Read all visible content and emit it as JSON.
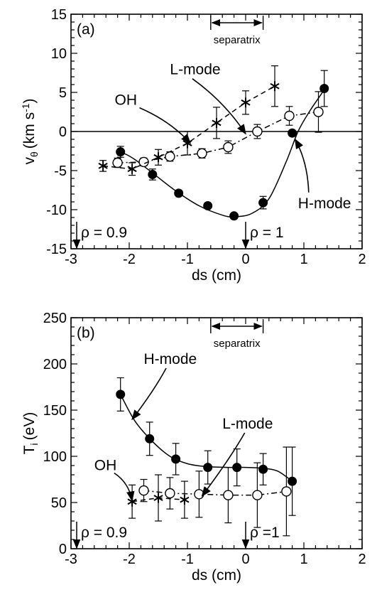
{
  "chart_data": [
    {
      "type": "scatter",
      "panel_label": "(a)",
      "xlabel": "ds (cm)",
      "ylabel_main": "v",
      "ylabel_sub": "θ",
      "ylabel_unit": "(km s",
      "ylabel_exp": "-1",
      "ylabel_close": ")",
      "xlim": [
        -3,
        2
      ],
      "ylim": [
        -15,
        15
      ],
      "xticks": [
        -3,
        -2,
        -1,
        0,
        1,
        2
      ],
      "yticks": [
        -15,
        -10,
        -5,
        0,
        5,
        10,
        15
      ],
      "xtick_labels": [
        "-3",
        "-2",
        "-1",
        "0",
        "1",
        "2"
      ],
      "ytick_labels": [
        "-15",
        "-10",
        "-5",
        "0",
        "5",
        "10",
        "15"
      ],
      "zero_line": true,
      "separatrix": {
        "label": "separatrix",
        "x_range": [
          -0.6,
          0.3
        ]
      },
      "markers": [
        {
          "text": "ρ = 0.9",
          "x": -3
        },
        {
          "text": "ρ = 1",
          "x": 0
        }
      ],
      "series": [
        {
          "name": "H-mode",
          "marker": "filled-circle",
          "line": "solid",
          "points": [
            {
              "x": -2.15,
              "y": -2.6,
              "err": 0.7
            },
            {
              "x": -1.6,
              "y": -5.5,
              "err": 0.7
            },
            {
              "x": -1.15,
              "y": -7.9,
              "err": 0
            },
            {
              "x": -0.65,
              "y": -9.5,
              "err": 0
            },
            {
              "x": -0.2,
              "y": -10.8,
              "err": 0
            },
            {
              "x": 0.3,
              "y": -9.1,
              "err": 0.8
            },
            {
              "x": 0.8,
              "y": -0.2,
              "err": 0
            },
            {
              "x": 1.35,
              "y": 5.5,
              "err": 2.3
            }
          ],
          "curve": [
            [
              -2.2,
              -3.1
            ],
            [
              -2.1,
              -2.8
            ],
            [
              -1.9,
              -3.6
            ],
            [
              -1.6,
              -5.3
            ],
            [
              -1.2,
              -7.6
            ],
            [
              -0.8,
              -9.5
            ],
            [
              -0.4,
              -10.7
            ],
            [
              -0.2,
              -10.9
            ],
            [
              0.1,
              -10.5
            ],
            [
              0.4,
              -8.6
            ],
            [
              0.7,
              -3.8
            ],
            [
              0.9,
              0
            ],
            [
              1.1,
              2.6
            ],
            [
              1.3,
              4.8
            ],
            [
              1.35,
              5.5
            ]
          ]
        },
        {
          "name": "L-mode",
          "marker": "open-circle",
          "line": "dash-dot",
          "points": [
            {
              "x": -2.2,
              "y": -4.0,
              "err": 0.6
            },
            {
              "x": -1.75,
              "y": -3.9,
              "err": 0.5
            },
            {
              "x": -1.3,
              "y": -3.2,
              "err": 0.6
            },
            {
              "x": -0.75,
              "y": -2.8,
              "err": 0.6
            },
            {
              "x": -0.3,
              "y": -2.0,
              "err": 0.8
            },
            {
              "x": 0.2,
              "y": 0.0,
              "err": 0.9
            },
            {
              "x": 0.75,
              "y": 2.0,
              "err": 1.2
            },
            {
              "x": 1.25,
              "y": 2.5,
              "err": 2.6
            }
          ]
        },
        {
          "name": "OH",
          "marker": "asterisk",
          "line": "dashed",
          "points": [
            {
              "x": -2.45,
              "y": -4.4,
              "err": 0.7
            },
            {
              "x": -1.95,
              "y": -4.8,
              "err": 0.8
            },
            {
              "x": -1.5,
              "y": -3.3,
              "err": 1.0
            },
            {
              "x": -1.0,
              "y": -1.5,
              "err": 1.5
            },
            {
              "x": -0.5,
              "y": 1.1,
              "err": 2.0
            },
            {
              "x": 0.0,
              "y": 3.7,
              "err": 1.5
            },
            {
              "x": 0.5,
              "y": 5.8,
              "err": 2.6
            }
          ]
        }
      ],
      "annotations": [
        {
          "text": "L-mode",
          "tx": -1.3,
          "ty": 7.3,
          "ax": 0.0,
          "ay": -0.3
        },
        {
          "text": "OH",
          "tx": -2.25,
          "ty": 3.4,
          "ax": -0.95,
          "ay": -1.5
        },
        {
          "text": "H-mode",
          "tx": 0.9,
          "ty": -9.8,
          "ax": 0.85,
          "ay": -1.0
        }
      ]
    },
    {
      "type": "scatter",
      "panel_label": "(b)",
      "xlabel": "ds (cm)",
      "ylabel_main": "T",
      "ylabel_sub": "i",
      "ylabel_unit": "(eV)",
      "ylabel_exp": "",
      "ylabel_close": "",
      "xlim": [
        -3,
        2
      ],
      "ylim": [
        0,
        250
      ],
      "xticks": [
        -3,
        -2,
        -1,
        0,
        1,
        2
      ],
      "yticks": [
        0,
        50,
        100,
        150,
        200,
        250
      ],
      "xtick_labels": [
        "-3",
        "-2",
        "-1",
        "0",
        "1",
        "2"
      ],
      "ytick_labels": [
        "0",
        "50",
        "100",
        "150",
        "200",
        "250"
      ],
      "zero_line": false,
      "separatrix": {
        "label": "separatrix",
        "x_range": [
          -0.6,
          0.3
        ]
      },
      "markers": [
        {
          "text": "ρ = 0.9",
          "x": -3
        },
        {
          "text": "ρ =1",
          "x": 0
        }
      ],
      "series": [
        {
          "name": "H-mode",
          "marker": "filled-circle",
          "line": "solid",
          "points": [
            {
              "x": -2.15,
              "y": 167,
              "err": 18
            },
            {
              "x": -1.65,
              "y": 119,
              "err": 18
            },
            {
              "x": -1.2,
              "y": 97,
              "err": 17
            },
            {
              "x": -0.65,
              "y": 88,
              "err": 18
            },
            {
              "x": -0.15,
              "y": 88,
              "err": 20
            },
            {
              "x": 0.3,
              "y": 86,
              "err": 17
            },
            {
              "x": 0.8,
              "y": 73,
              "err": 37
            }
          ],
          "curve": [
            [
              -2.15,
              167
            ],
            [
              -1.9,
              138
            ],
            [
              -1.6,
              116
            ],
            [
              -1.3,
              100
            ],
            [
              -1.0,
              92
            ],
            [
              -0.7,
              89
            ],
            [
              -0.3,
              88
            ],
            [
              0.0,
              88
            ],
            [
              0.3,
              87
            ],
            [
              0.55,
              84
            ],
            [
              0.8,
              73
            ]
          ]
        },
        {
          "name": "L-mode",
          "marker": "open-circle",
          "line": "dash-dot",
          "points": [
            {
              "x": -1.75,
              "y": 63,
              "err": 12
            },
            {
              "x": -1.3,
              "y": 60,
              "err": 17
            },
            {
              "x": -0.8,
              "y": 59,
              "err": 25
            },
            {
              "x": -0.3,
              "y": 58,
              "err": 30
            },
            {
              "x": 0.2,
              "y": 58,
              "err": 35
            },
            {
              "x": 0.7,
              "y": 62,
              "err": 48
            }
          ]
        },
        {
          "name": "OH",
          "marker": "asterisk",
          "line": "dashed",
          "points": [
            {
              "x": -1.95,
              "y": 51,
              "err": 18
            },
            {
              "x": -1.5,
              "y": 55,
              "err": 25
            },
            {
              "x": -1.05,
              "y": 53,
              "err": 20
            }
          ]
        }
      ],
      "annotations": [
        {
          "text": "H-mode",
          "tx": -1.75,
          "ty": 200,
          "ax": -1.95,
          "ay": 140
        },
        {
          "text": "L-mode",
          "tx": -0.4,
          "ty": 130,
          "ax": -0.75,
          "ay": 57
        },
        {
          "text": "OH",
          "tx": -2.6,
          "ty": 85,
          "ax": -1.95,
          "ay": 52
        }
      ]
    }
  ]
}
